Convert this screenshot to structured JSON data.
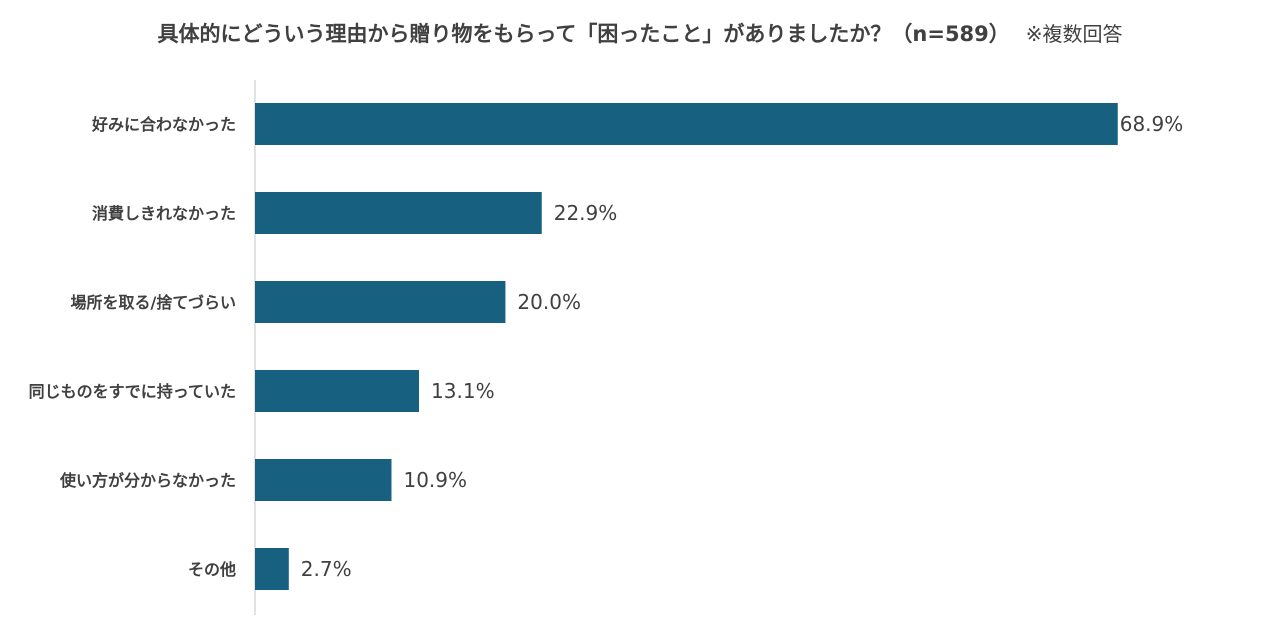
{
  "chart_data": {
    "type": "bar",
    "orientation": "horizontal",
    "title": "具体的にどういう理由から贈り物をもらって「困ったこと」がありましたか？（n=589）",
    "note": "※複数回答",
    "categories": [
      "好みに合わなかった",
      "消費しきれなかった",
      "場所を取る/捨てづらい",
      "同じものをすでに持っていた",
      "使い方が分からなかった",
      "その他"
    ],
    "values": [
      68.9,
      22.9,
      20.0,
      13.1,
      10.9,
      2.7
    ],
    "value_labels": [
      "68.9%",
      "22.9%",
      "20.0%",
      "13.1%",
      "10.9%",
      "2.7%"
    ],
    "unit": "%",
    "xlim": [
      0,
      69
    ],
    "grid": false,
    "legend": "none",
    "bar_color": "#17607f"
  }
}
